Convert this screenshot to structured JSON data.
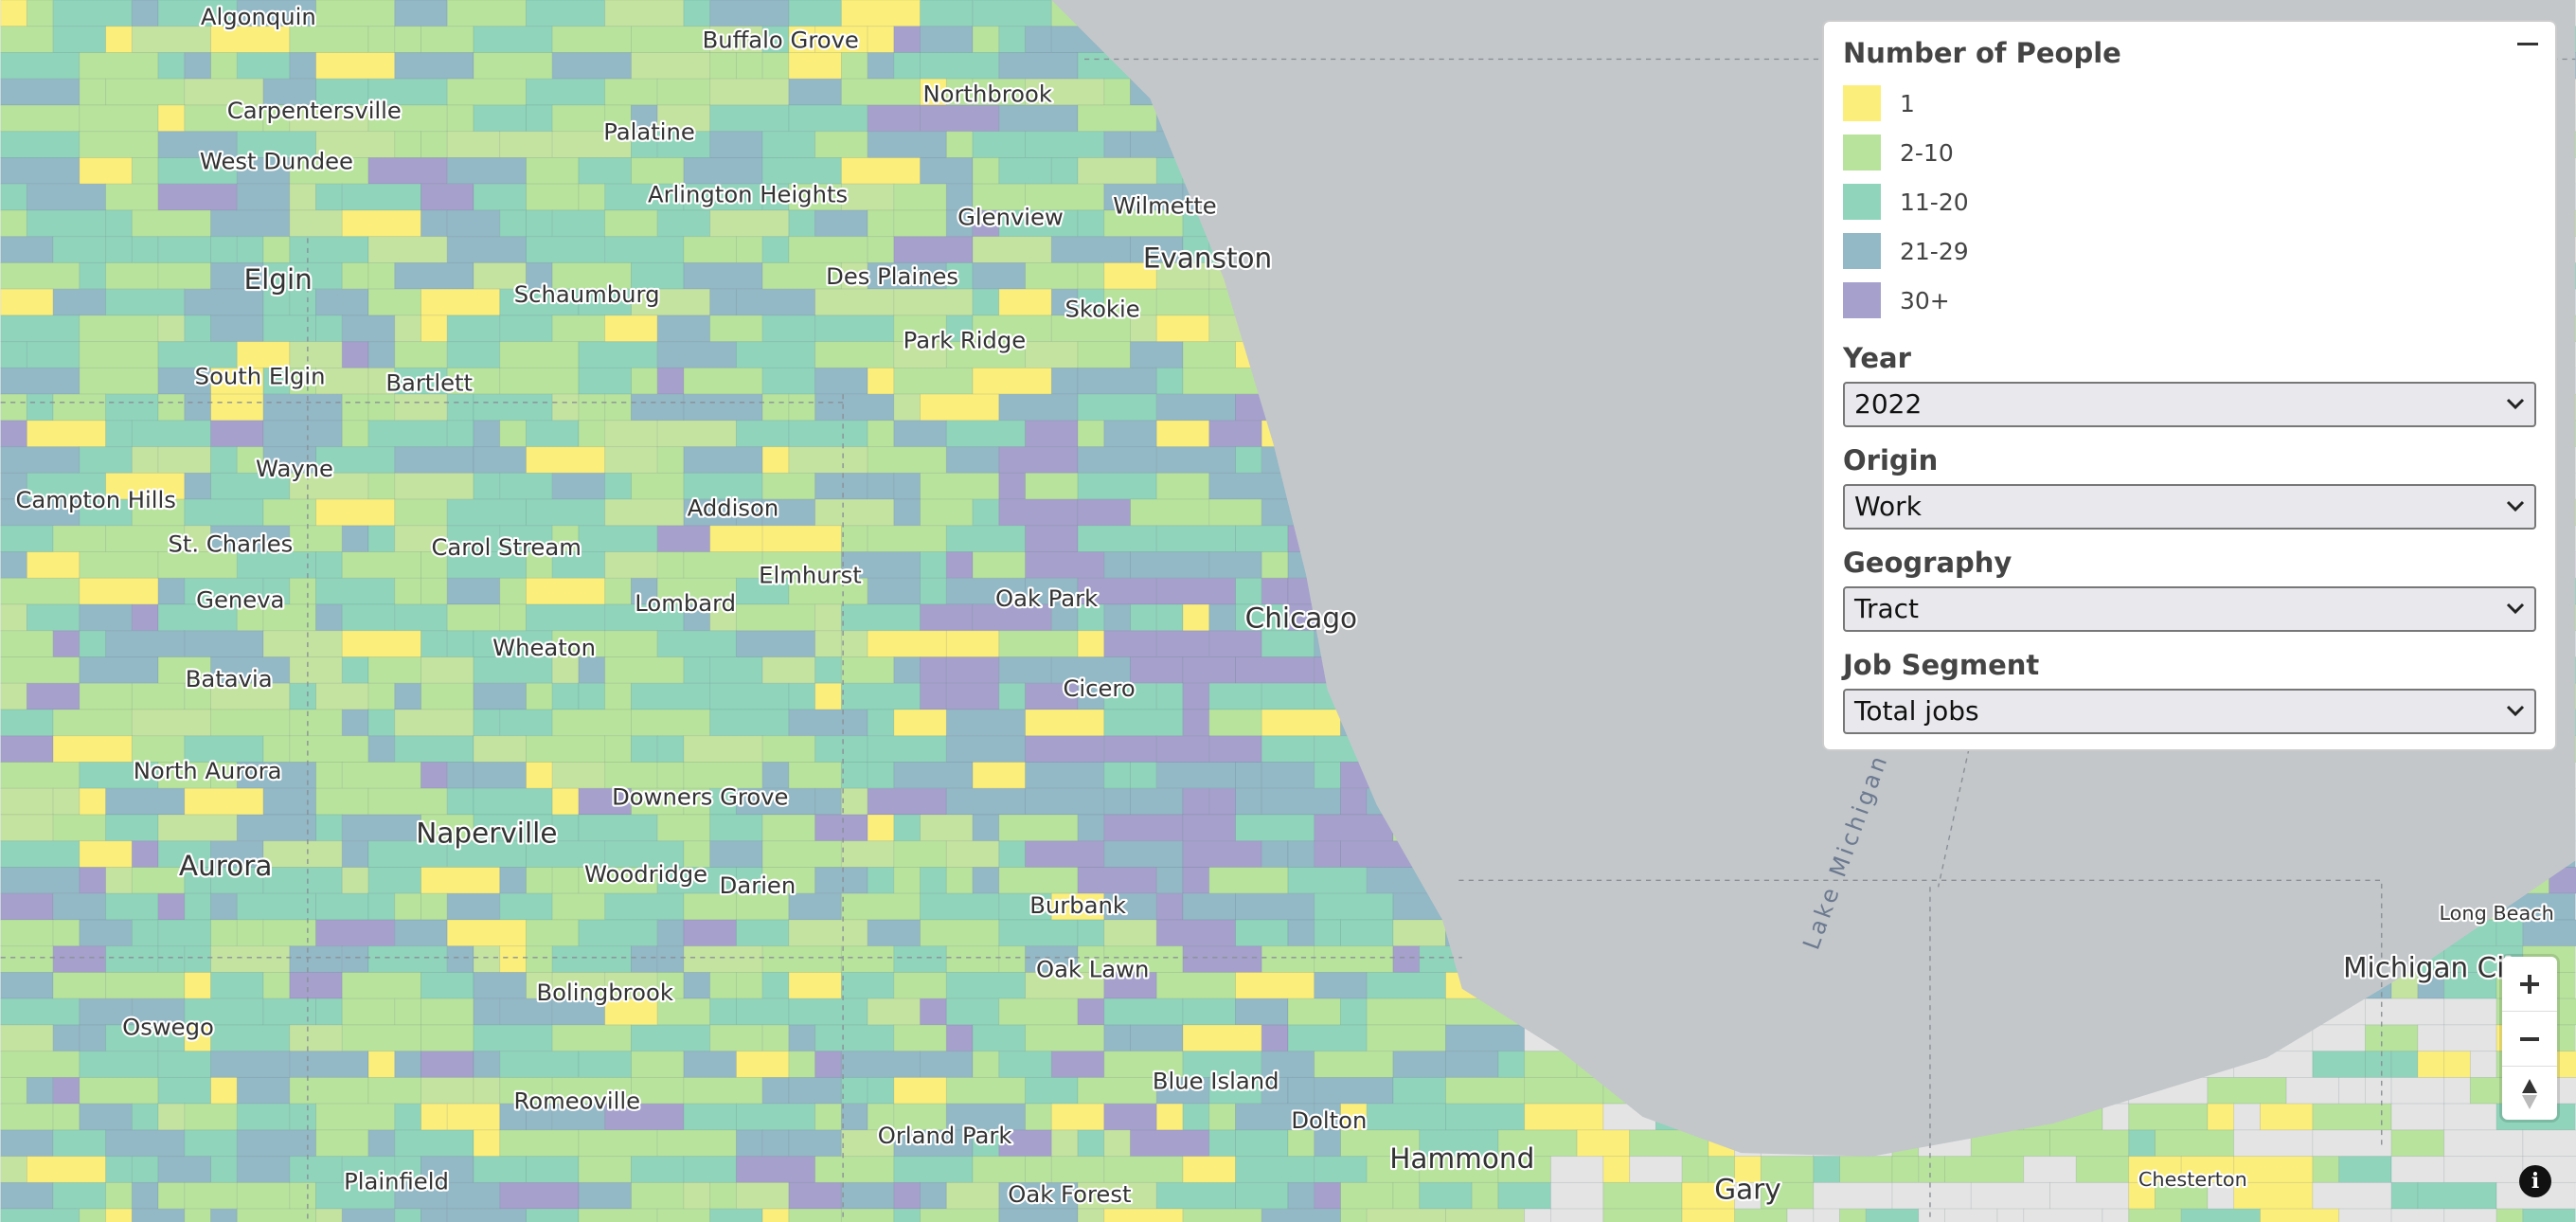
{
  "legend": {
    "title": "Number of People",
    "items": [
      {
        "label": "1",
        "color": "#fbee7a"
      },
      {
        "label": "2-10",
        "color": "#b8e39c"
      },
      {
        "label": "11-20",
        "color": "#8fd4bb"
      },
      {
        "label": "21-29",
        "color": "#93b8c6"
      },
      {
        "label": "30+",
        "color": "#a5a0cc"
      }
    ]
  },
  "controls": [
    {
      "label": "Year",
      "value": "2022"
    },
    {
      "label": "Origin",
      "value": "Work"
    },
    {
      "label": "Geography",
      "value": "Tract"
    },
    {
      "label": "Job Segment",
      "value": "Total jobs"
    }
  ],
  "map": {
    "water_label": "Lake Michigan",
    "places": [
      "Algonquin",
      "Buffalo Grove",
      "Northbrook",
      "Carpentersville",
      "West Dundee",
      "Palatine",
      "Arlington Heights",
      "Glenview",
      "Wilmette",
      "Evanston",
      "Elgin",
      "Schaumburg",
      "Des Plaines",
      "Skokie",
      "Park Ridge",
      "South Elgin",
      "Bartlett",
      "Wayne",
      "Campton Hills",
      "Addison",
      "St. Charles",
      "Carol Stream",
      "Elmhurst",
      "Geneva",
      "Oak Park",
      "Lombard",
      "Chicago",
      "Wheaton",
      "Batavia",
      "Cicero",
      "North Aurora",
      "Downers Grove",
      "Naperville",
      "Aurora",
      "Woodridge",
      "Darien",
      "Burbank",
      "Oak Lawn",
      "Bolingbrook",
      "Oswego",
      "Blue Island",
      "Romeoville",
      "Dolton",
      "Orland Park",
      "Hammond",
      "Gary",
      "Chesterton",
      "Plainfield",
      "Oak Forest",
      "Michigan City",
      "Long Beach"
    ]
  }
}
